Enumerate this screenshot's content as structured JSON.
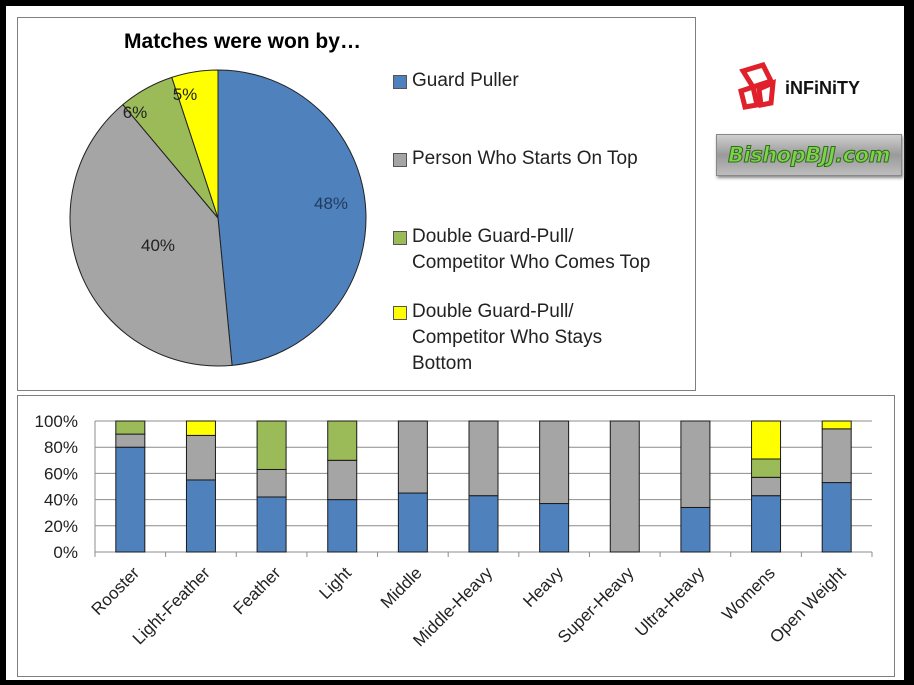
{
  "logos": {
    "infinity": "iNFiNiTY",
    "bishop": "BishopBJJ.com"
  },
  "colors": {
    "guard_puller": "#4F81BD",
    "starts_on_top": "#A5A5A5",
    "comes_top": "#9BBB59",
    "stays_bottom": "#FFFF00"
  },
  "chart_data": [
    {
      "type": "pie",
      "title": "Matches were won by…",
      "categories": [
        "Guard Puller",
        "Person Who Starts On Top",
        "Double Guard-Pull/ Competitor Who Comes Top",
        "Double Guard-Pull/ Competitor Who Stays Bottom"
      ],
      "values": [
        48,
        40,
        6,
        5
      ],
      "data_labels": [
        "48%",
        "40%",
        "6%",
        "5%"
      ],
      "legend_position": "right",
      "legend": [
        {
          "lines": [
            "Guard Puller"
          ],
          "color": "#4F81BD"
        },
        {
          "lines": [
            "Person Who Starts On Top"
          ],
          "color": "#A5A5A5"
        },
        {
          "lines": [
            "Double Guard-Pull/",
            "Competitor Who Comes Top"
          ],
          "color": "#9BBB59"
        },
        {
          "lines": [
            "Double Guard-Pull/",
            "Competitor Who Stays",
            "Bottom"
          ],
          "color": "#FFFF00"
        }
      ]
    },
    {
      "type": "bar",
      "stacked": "percent",
      "title": "",
      "xlabel": "",
      "ylabel": "",
      "ylim": [
        0,
        100
      ],
      "yticks": [
        "0%",
        "20%",
        "40%",
        "60%",
        "80%",
        "100%"
      ],
      "grid": true,
      "legend": "none",
      "categories": [
        "Rooster",
        "Light-Feather",
        "Feather",
        "Light",
        "Middle",
        "Middle-Heavy",
        "Heavy",
        "Super-Heavy",
        "Ultra-Heavy",
        "Womens",
        "Open Weight"
      ],
      "series": [
        {
          "name": "Guard Puller",
          "color": "#4F81BD",
          "values": [
            80,
            55,
            42,
            40,
            45,
            43,
            37,
            0,
            34,
            43,
            53
          ]
        },
        {
          "name": "Person Who Starts On Top",
          "color": "#A5A5A5",
          "values": [
            10,
            34,
            21,
            30,
            55,
            57,
            63,
            100,
            66,
            14,
            41
          ]
        },
        {
          "name": "Double Guard-Pull/ Competitor Who Comes Top",
          "color": "#9BBB59",
          "values": [
            10,
            0,
            37,
            30,
            0,
            0,
            0,
            0,
            0,
            14,
            0
          ]
        },
        {
          "name": "Double Guard-Pull/ Competitor Who Stays Bottom",
          "color": "#FFFF00",
          "values": [
            0,
            11,
            0,
            0,
            0,
            0,
            0,
            0,
            0,
            29,
            6
          ]
        }
      ]
    }
  ]
}
